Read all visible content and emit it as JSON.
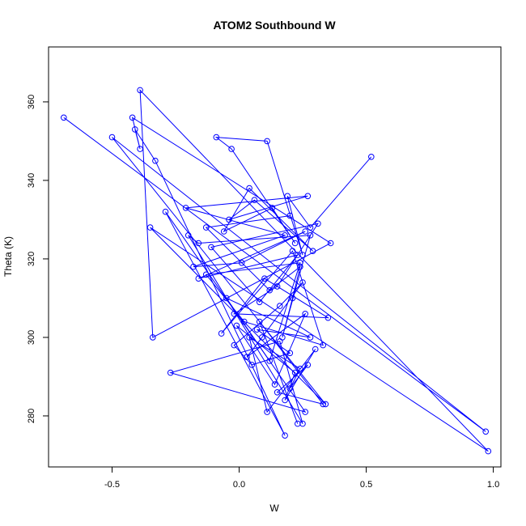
{
  "chart_data": {
    "type": "scatter",
    "title": "ATOM2 Southbound W",
    "xlabel": "W",
    "ylabel": "Theta (K)",
    "xlim": [
      -0.75,
      1.03
    ],
    "ylim": [
      267,
      374
    ],
    "xticks": [
      -0.5,
      0.0,
      0.5,
      1.0
    ],
    "xtick_labels": [
      "-0.5",
      "0.0",
      "0.5",
      "1.0"
    ],
    "yticks": [
      280,
      300,
      320,
      340,
      360
    ],
    "ytick_labels": [
      "280",
      "300",
      "320",
      "340",
      "360"
    ],
    "grid": false,
    "legend": "none",
    "style": "points connected by lines in sequence order, open circle markers",
    "color": "#0000ff",
    "series": [
      {
        "x": [
          0.52,
          0.28,
          0.19,
          0.25,
          0.11,
          -0.09,
          -0.03,
          0.22,
          0.13,
          -0.06,
          0.04,
          0.29,
          0.06,
          -0.04,
          0.27,
          -0.21,
          0.18,
          -0.18,
          0.01,
          0.26,
          -0.16,
          0.23,
          0.08,
          -0.11,
          0.31,
          0.15,
          -0.02,
          0.35,
          0.1,
          -0.07,
          0.21,
          0.33,
          0.02,
          -0.13,
          0.24,
          0.12,
          -0.05,
          0.28,
          0.07,
          0.2,
          0.05,
          -0.02,
          0.16,
          0.25,
          0.09,
          0.03,
          0.26,
          0.14,
          -0.01,
          0.22,
          0.18,
          0.3,
          0.11,
          0.04,
          0.24,
          0.2,
          0.27,
          0.15,
          0.33,
          0.08,
          0.23
        ],
        "y": [
          346,
          328,
          336,
          321,
          350,
          351,
          348,
          324,
          333,
          327,
          338,
          322,
          335,
          330,
          336,
          333,
          326,
          318,
          319,
          327,
          315,
          321,
          309,
          323,
          329,
          313,
          306,
          305,
          315,
          301,
          322,
          298,
          304,
          316,
          319,
          294,
          310,
          300,
          302,
          296,
          293,
          298,
          308,
          314,
          300,
          295,
          306,
          288,
          303,
          291,
          284,
          297,
          281,
          300,
          292,
          287,
          293,
          286,
          283,
          304,
          278
        ]
      },
      {
        "x": [
          -0.69,
          0.97,
          -0.5,
          0.34,
          -0.35,
          0.98,
          -0.39,
          -0.34,
          0.36,
          -0.42,
          -0.39,
          -0.41,
          -0.33,
          0.18,
          -0.29,
          0.26,
          -0.27,
          0.16,
          0.25,
          -0.2,
          -0.16,
          0.28,
          0.17,
          0.21,
          0.24,
          0.12,
          -0.13,
          0.2
        ],
        "y": [
          356,
          276,
          351,
          283,
          328,
          271,
          363,
          300,
          324,
          356,
          348,
          353,
          345,
          275,
          332,
          281,
          291,
          299,
          278,
          326,
          324,
          326,
          300,
          310,
          318,
          312,
          328,
          331
        ]
      }
    ]
  }
}
